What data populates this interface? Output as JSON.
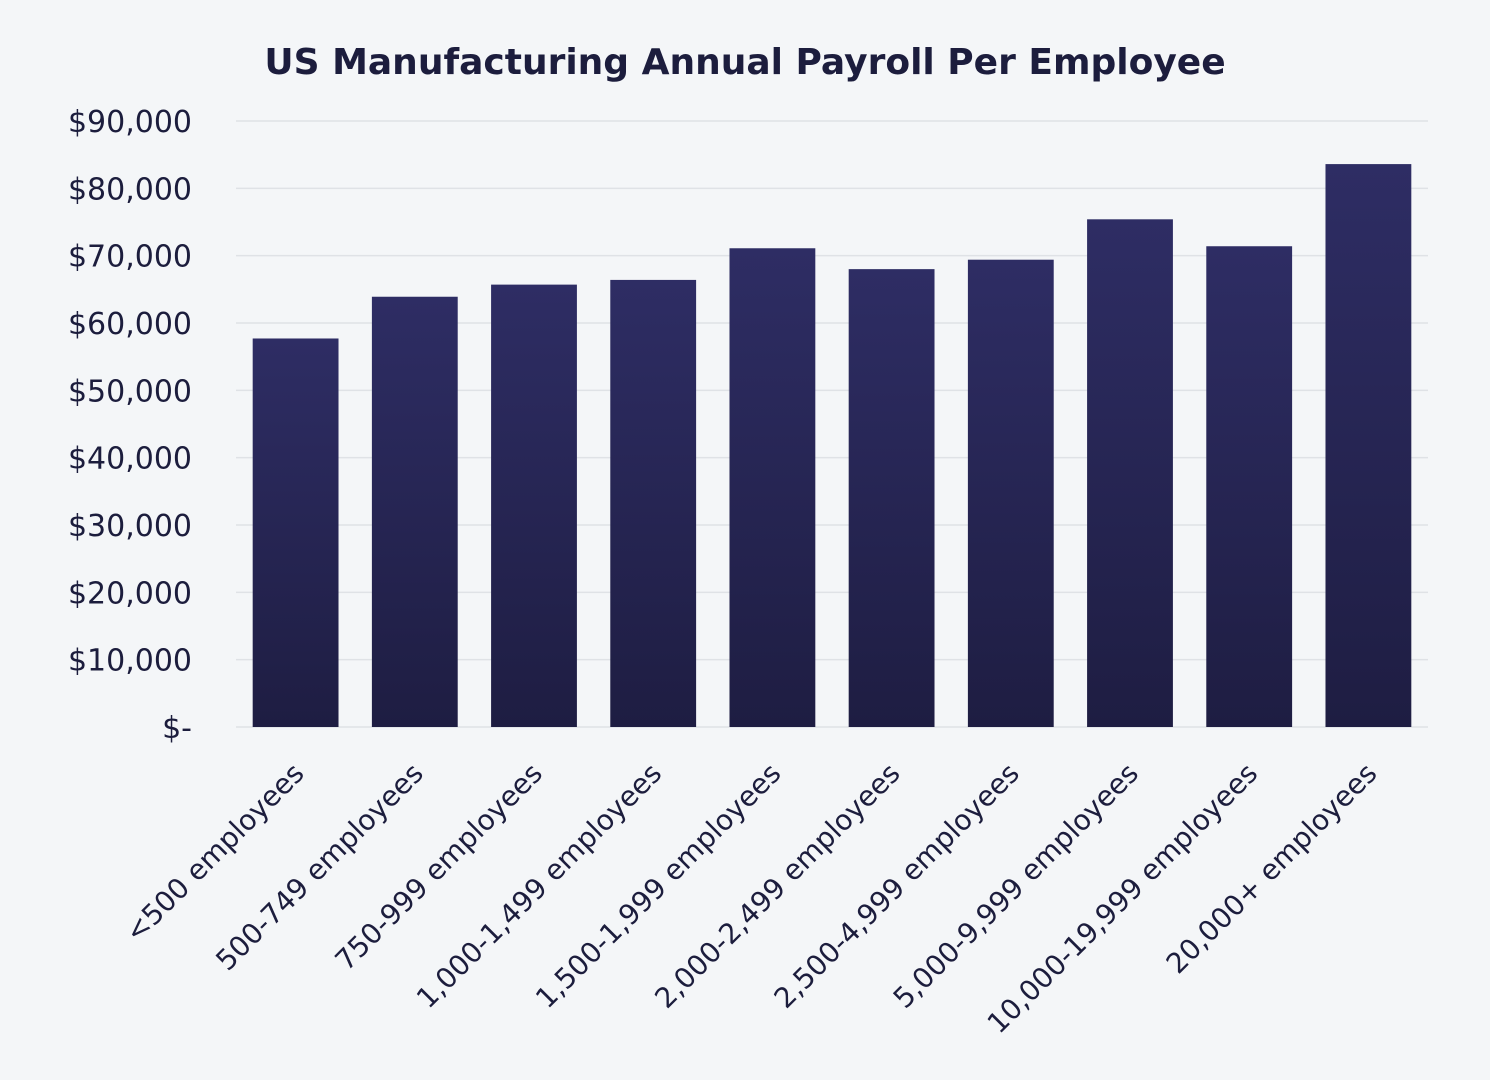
{
  "chart_data": {
    "type": "bar",
    "title": "US Manufacturing Annual Payroll Per Employee",
    "xlabel": "",
    "ylabel": "",
    "categories": [
      "<500 employees",
      "500-749 employees",
      "750-999 employees",
      "1,000-1,499 employees",
      "1,500-1,999 employees",
      "2,000-2,499 employees",
      "2,500-4,999 employees",
      "5,000-9,999 employees",
      "10,000-19,999 employees",
      "20,000+ employees"
    ],
    "values": [
      57700,
      63900,
      65700,
      66400,
      71100,
      68000,
      69400,
      75400,
      71400,
      83600
    ],
    "ylim": [
      0,
      90000
    ],
    "yticks": [
      {
        "value": 90000,
        "label": "$90,000"
      },
      {
        "value": 80000,
        "label": "$80,000"
      },
      {
        "value": 70000,
        "label": "$70,000"
      },
      {
        "value": 60000,
        "label": "$60,000"
      },
      {
        "value": 50000,
        "label": "$50,000"
      },
      {
        "value": 40000,
        "label": "$40,000"
      },
      {
        "value": 30000,
        "label": "$30,000"
      },
      {
        "value": 20000,
        "label": "$20,000"
      },
      {
        "value": 10000,
        "label": "$10,000"
      },
      {
        "value": 0,
        "label": "$-"
      }
    ],
    "grid": true,
    "legend": "none",
    "colors": {
      "bar_top": "#2e2d64",
      "bar_bottom": "#1e1d42",
      "text": "#1c1d3d",
      "grid": "#dfe2e6",
      "background": "#f4f6f8"
    }
  }
}
